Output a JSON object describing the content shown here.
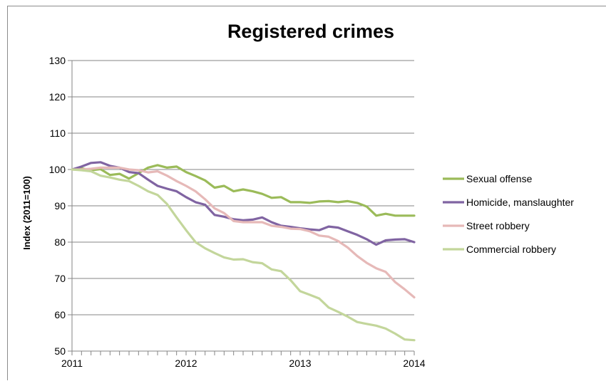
{
  "chart_data": {
    "type": "line",
    "title": "Registered crimes",
    "xlabel": "",
    "ylabel": "Index (2011=100)",
    "xlim": [
      2011,
      2014
    ],
    "ylim": [
      50,
      130
    ],
    "x_ticks": [
      "2011",
      "2012",
      "2013",
      "2014"
    ],
    "y_ticks": [
      "50",
      "60",
      "70",
      "80",
      "90",
      "100",
      "110",
      "120",
      "130"
    ],
    "grid": "horizontal major gridlines",
    "legend_position": "right",
    "x": [
      2011.0,
      2011.083,
      2011.167,
      2011.25,
      2011.333,
      2011.417,
      2011.5,
      2011.583,
      2011.667,
      2011.75,
      2011.833,
      2011.917,
      2012.0,
      2012.083,
      2012.167,
      2012.25,
      2012.333,
      2012.417,
      2012.5,
      2012.583,
      2012.667,
      2012.75,
      2012.833,
      2012.917,
      2013.0,
      2013.083,
      2013.167,
      2013.25,
      2013.333,
      2013.417,
      2013.5,
      2013.583,
      2013.667,
      2013.75,
      2013.833,
      2013.917,
      2014.0
    ],
    "series": [
      {
        "name": "Sexual offense",
        "color": "#9bbb59",
        "values": [
          100,
          100.3,
          99.8,
          100.1,
          98.5,
          98.8,
          97.5,
          99.0,
          100.5,
          101.2,
          100.5,
          100.8,
          99.3,
          98.2,
          97.0,
          95.0,
          95.5,
          94.0,
          94.5,
          94.0,
          93.3,
          92.2,
          92.4,
          91.0,
          91.0,
          90.8,
          91.2,
          91.3,
          91.0,
          91.3,
          90.8,
          89.8,
          87.3,
          87.8,
          87.3,
          87.3,
          87.3
        ]
      },
      {
        "name": "Homicide, manslaughter",
        "color": "#8064a2",
        "values": [
          100,
          100.8,
          101.8,
          102.0,
          101.0,
          100.5,
          99.3,
          99.0,
          97.2,
          95.5,
          94.7,
          94.0,
          92.4,
          91.0,
          90.3,
          87.5,
          87.0,
          86.3,
          86.0,
          86.2,
          86.8,
          85.5,
          84.5,
          84.2,
          83.8,
          83.5,
          83.3,
          84.3,
          84.0,
          83.0,
          82.0,
          80.8,
          79.3,
          80.5,
          80.7,
          80.8,
          80.0
        ]
      },
      {
        "name": "Street robbery",
        "color": "#e6b9b8",
        "values": [
          100,
          100.0,
          100.2,
          100.5,
          100.5,
          100.5,
          100.0,
          99.8,
          99.2,
          99.5,
          98.3,
          96.8,
          95.5,
          94.0,
          91.8,
          89.3,
          88.0,
          85.8,
          85.5,
          85.5,
          85.5,
          84.5,
          84.2,
          83.7,
          83.6,
          83.0,
          81.8,
          81.5,
          80.3,
          78.5,
          76.2,
          74.3,
          72.8,
          71.8,
          69.0,
          67.0,
          64.8
        ]
      },
      {
        "name": "Commercial robbery",
        "color": "#c3d69b",
        "values": [
          100,
          99.8,
          99.5,
          98.3,
          97.8,
          97.2,
          96.8,
          95.5,
          94.0,
          93.0,
          90.5,
          86.8,
          83.3,
          80.0,
          78.3,
          77.0,
          75.8,
          75.2,
          75.3,
          74.5,
          74.2,
          72.5,
          72.0,
          69.5,
          66.5,
          65.5,
          64.5,
          62.0,
          60.8,
          59.5,
          58.0,
          57.5,
          57.0,
          56.2,
          54.8,
          53.2,
          53.0
        ]
      }
    ]
  }
}
